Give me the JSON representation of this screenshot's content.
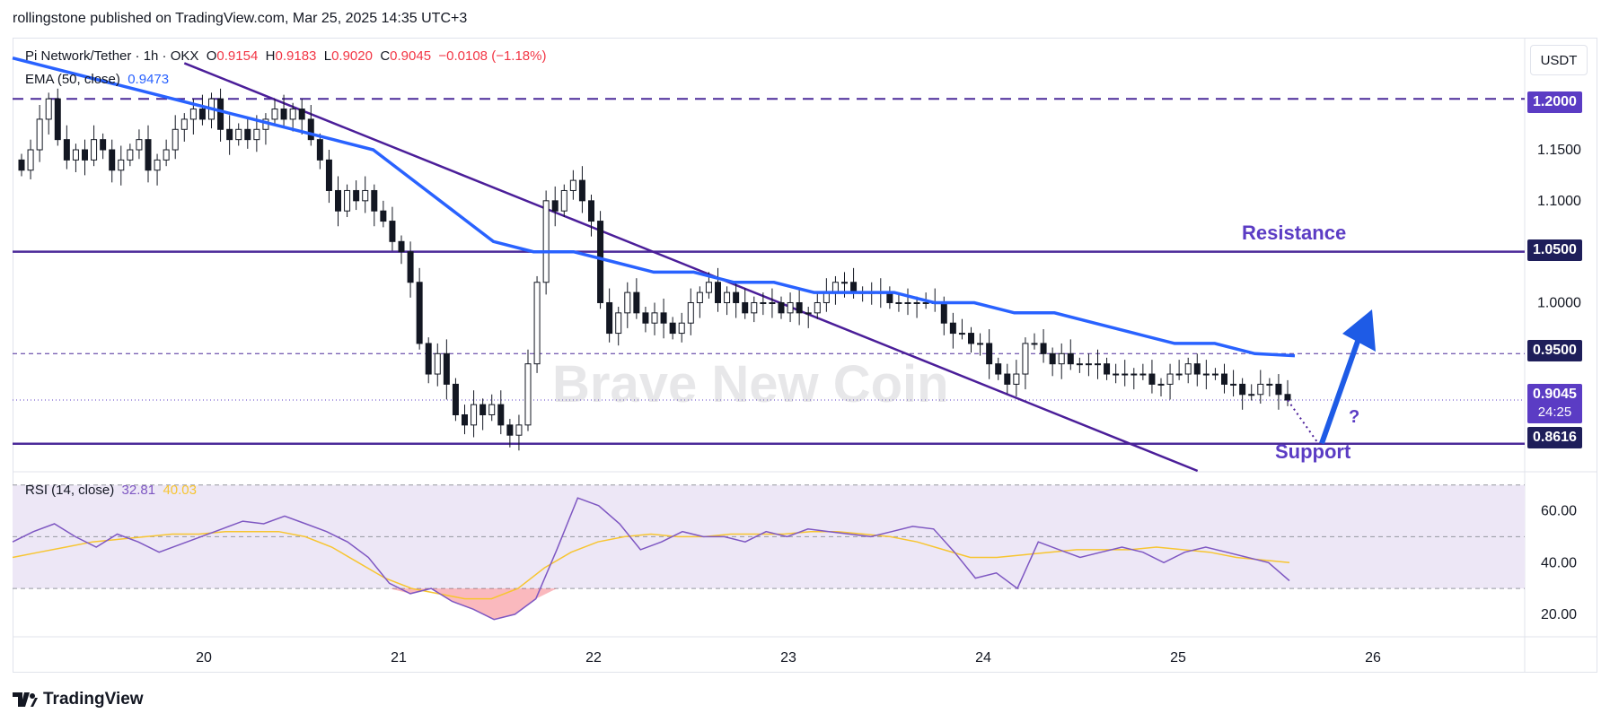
{
  "header": {
    "publisher": "rollingstone published on TradingView.com, Mar 25, 2025 14:35 UTC+3"
  },
  "legend": {
    "symbol": "Pi Network/Tether · 1h · OKX",
    "open_label": "O",
    "open": "0.9154",
    "high_label": "H",
    "high": "0.9183",
    "low_label": "L",
    "low": "0.9020",
    "close_label": "C",
    "close": "0.9045",
    "change": "−0.0108 (−1.18%)",
    "ema_label": "EMA (50, close)",
    "ema_value": "0.9473",
    "rsi_label": "RSI (14, close)",
    "rsi_value": "32.81",
    "rsi_ma_value": "40.03"
  },
  "currency_button": "USDT",
  "watermark": "Brave New Coin",
  "annotations": {
    "resistance": "Resistance",
    "support": "Support",
    "question": "?"
  },
  "price_badges": [
    {
      "label": "1.2000",
      "color": "#5b3cc4"
    },
    {
      "label": "1.0500",
      "color": "#1e1e5a"
    },
    {
      "label": "0.9500",
      "color": "#1e1e5a"
    },
    {
      "label": "0.9045",
      "countdown": "24:25",
      "color": "#5b3cc4"
    },
    {
      "label": "0.8616",
      "color": "#1e1e5a"
    }
  ],
  "branding": {
    "logo_text": "TradingView"
  },
  "colors": {
    "candle": "#131722",
    "ema": "#2962ff",
    "level": "#4b2a99",
    "rsi": "#7e57c2",
    "rsi_ma": "#f7c531",
    "rsi_band": "#ede7f6",
    "arrow": "#1e5be6"
  },
  "chart_data": {
    "type": "candlestick",
    "title": "Pi Network/Tether · 1h · OKX",
    "x_tick_labels": [
      "20",
      "21",
      "22",
      "23",
      "24",
      "25",
      "26"
    ],
    "y_tick_labels": [
      "1.1500",
      "1.1000",
      "1.0000"
    ],
    "ylim": [
      0.835,
      1.26
    ],
    "grid": false,
    "horizontal_levels": [
      {
        "value": 1.2,
        "style": "dashed"
      },
      {
        "value": 1.05,
        "style": "solid",
        "label": "Resistance"
      },
      {
        "value": 0.95,
        "style": "dashed"
      },
      {
        "value": 0.8616,
        "style": "solid",
        "label": "Support"
      }
    ],
    "downtrend_line": {
      "from": [
        19.9,
        1.235
      ],
      "to": [
        25.1,
        0.835
      ]
    },
    "closes": [
      1.13,
      1.15,
      1.18,
      1.2,
      1.16,
      1.14,
      1.15,
      1.14,
      1.16,
      1.15,
      1.13,
      1.14,
      1.15,
      1.16,
      1.13,
      1.14,
      1.15,
      1.17,
      1.18,
      1.19,
      1.18,
      1.2,
      1.17,
      1.16,
      1.17,
      1.16,
      1.17,
      1.18,
      1.19,
      1.18,
      1.19,
      1.18,
      1.16,
      1.14,
      1.11,
      1.09,
      1.11,
      1.1,
      1.11,
      1.09,
      1.08,
      1.06,
      1.05,
      1.02,
      0.96,
      0.93,
      0.95,
      0.92,
      0.89,
      0.88,
      0.9,
      0.89,
      0.9,
      0.88,
      0.87,
      0.88,
      0.94,
      1.02,
      1.1,
      1.09,
      1.11,
      1.12,
      1.1,
      1.08,
      1.0,
      0.97,
      0.99,
      1.01,
      0.99,
      0.98,
      0.99,
      0.98,
      0.97,
      0.98,
      1.0,
      1.01,
      1.02,
      1.0,
      1.01,
      1.0,
      0.99,
      1.0,
      1.0,
      1.0,
      0.99,
      1.0,
      0.99,
      0.99,
      1.0,
      1.01,
      1.02,
      1.02,
      1.01,
      1.01,
      1.01,
      1.01,
      1.0,
      1.0,
      1.0,
      1.0,
      1.0,
      1.0,
      0.98,
      0.97,
      0.97,
      0.96,
      0.96,
      0.94,
      0.93,
      0.92,
      0.93,
      0.96,
      0.96,
      0.95,
      0.94,
      0.95,
      0.94,
      0.94,
      0.94,
      0.94,
      0.93,
      0.93,
      0.93,
      0.93,
      0.93,
      0.92,
      0.92,
      0.93,
      0.93,
      0.94,
      0.93,
      0.93,
      0.93,
      0.92,
      0.92,
      0.91,
      0.91,
      0.92,
      0.92,
      0.91,
      0.9045
    ],
    "ema_50": [
      1.24,
      1.23,
      1.22,
      1.21,
      1.2,
      1.19,
      1.18,
      1.17,
      1.16,
      1.15,
      1.12,
      1.09,
      1.06,
      1.05,
      1.05,
      1.04,
      1.03,
      1.03,
      1.02,
      1.02,
      1.01,
      1.01,
      1.01,
      1.0,
      1.0,
      0.99,
      0.99,
      0.98,
      0.97,
      0.96,
      0.96,
      0.95,
      0.948
    ],
    "rsi": [
      48,
      52,
      55,
      50,
      46,
      51,
      48,
      44,
      47,
      50,
      53,
      56,
      55,
      58,
      55,
      52,
      48,
      42,
      32,
      28,
      30,
      25,
      22,
      18,
      20,
      26,
      45,
      65,
      62,
      55,
      45,
      48,
      52,
      50,
      50,
      48,
      52,
      50,
      53,
      52,
      51,
      50,
      52,
      54,
      53,
      44,
      34,
      36,
      30,
      48,
      45,
      42,
      44,
      46,
      44,
      40,
      44,
      46,
      44,
      42,
      40,
      33
    ],
    "rsi_ma": [
      42,
      44,
      46,
      48,
      49,
      50,
      51,
      51,
      52,
      52,
      52,
      50,
      46,
      40,
      34,
      30,
      28,
      26,
      26,
      30,
      38,
      44,
      48,
      50,
      51,
      50,
      50,
      51,
      51,
      51,
      52,
      52,
      51,
      50,
      48,
      45,
      42,
      42,
      43,
      44,
      45,
      45,
      45,
      46,
      45,
      44,
      42,
      41,
      40
    ],
    "rsi_axis": {
      "labels": [
        "60.00",
        "40.00",
        "20.00"
      ],
      "ylim": [
        12,
        72
      ]
    }
  }
}
